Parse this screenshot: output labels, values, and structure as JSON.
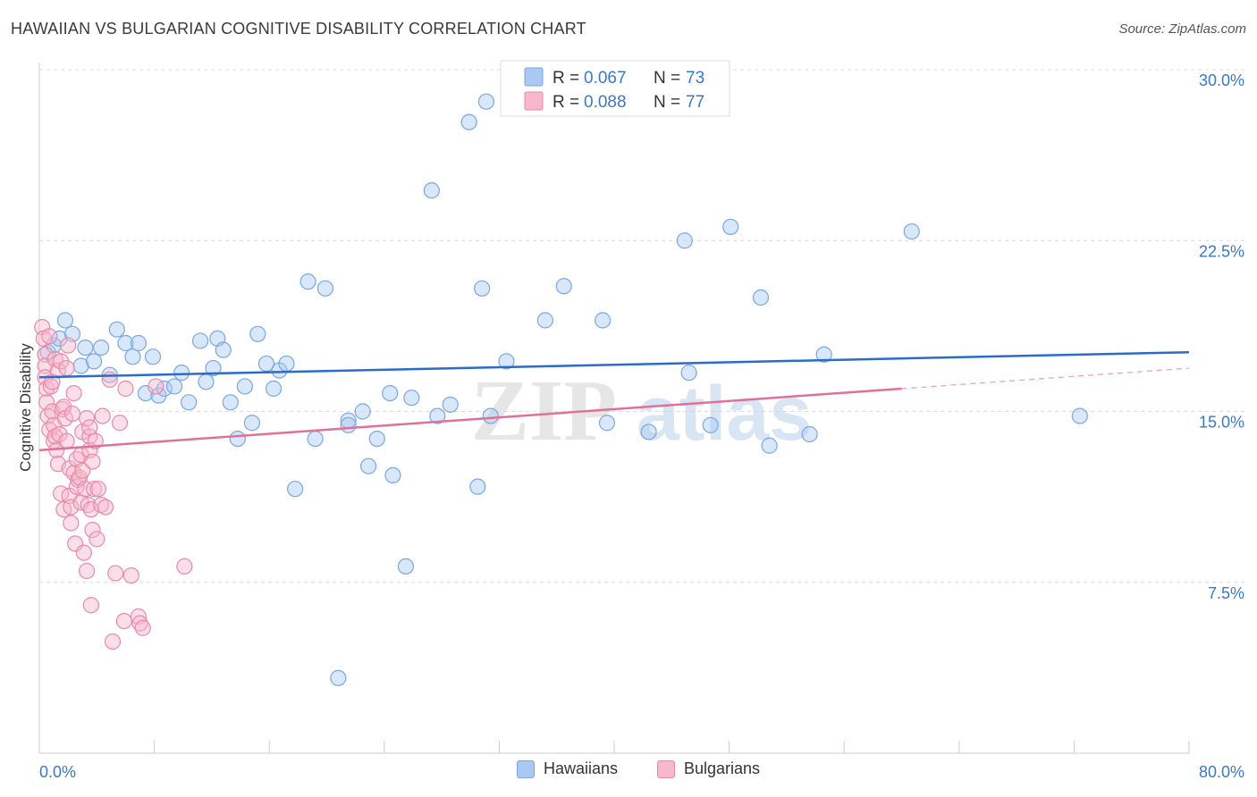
{
  "header": {
    "title": "HAWAIIAN VS BULGARIAN COGNITIVE DISABILITY CORRELATION CHART",
    "source": "Source: ZipAtlas.com"
  },
  "watermark": "ZIPatlas",
  "colors": {
    "hawaiians_fill": "#a9c9f2",
    "hawaiians_stroke": "#7aa7e0",
    "hawaiians_line": "#2a6cc9",
    "bulgarians_fill": "#f7b8cc",
    "bulgarians_stroke": "#e88aa8",
    "bulgarians_line": "#e0709a",
    "axis_label": "#3a78c8"
  },
  "legend": {
    "rows": [
      {
        "r_label": "R = ",
        "r_value": "0.067",
        "n_label": "N = ",
        "n_value": "73"
      },
      {
        "r_label": "R = ",
        "r_value": "0.088",
        "n_label": "N = ",
        "n_value": "77"
      }
    ]
  },
  "bottom_legend": [
    "Hawaiians",
    "Bulgarians"
  ],
  "chart_data": {
    "type": "scatter",
    "xlabel": "",
    "ylabel": "Cognitive Disability",
    "xlim": [
      0,
      80
    ],
    "ylim": [
      0,
      31
    ],
    "x_tick_labels": [
      "0.0%",
      "80.0%"
    ],
    "y_ticks": [
      7.5,
      15.0,
      22.5,
      30.0
    ],
    "y_tick_labels": [
      "7.5%",
      "15.0%",
      "22.5%",
      "30.0%"
    ],
    "grid": true,
    "legend_position": "top-center",
    "series": [
      {
        "name": "Hawaiians",
        "r": 0.067,
        "n": 73,
        "trend": {
          "x0": 0,
          "y0": 16.5,
          "x1": 80,
          "y1": 17.6
        },
        "points": [
          [
            0.6,
            17.6
          ],
          [
            1.0,
            17.9
          ],
          [
            1.4,
            18.2
          ],
          [
            1.8,
            19.0
          ],
          [
            2.3,
            18.4
          ],
          [
            2.9,
            17.0
          ],
          [
            3.2,
            17.8
          ],
          [
            3.8,
            17.2
          ],
          [
            4.3,
            17.8
          ],
          [
            4.9,
            16.6
          ],
          [
            5.4,
            18.6
          ],
          [
            6.0,
            18.0
          ],
          [
            6.5,
            17.4
          ],
          [
            6.9,
            18.0
          ],
          [
            7.4,
            15.8
          ],
          [
            7.9,
            17.4
          ],
          [
            8.3,
            15.7
          ],
          [
            8.7,
            16.0
          ],
          [
            9.4,
            16.1
          ],
          [
            9.9,
            16.7
          ],
          [
            10.4,
            15.4
          ],
          [
            11.2,
            18.1
          ],
          [
            11.6,
            16.3
          ],
          [
            12.1,
            16.9
          ],
          [
            12.4,
            18.2
          ],
          [
            12.8,
            17.7
          ],
          [
            13.3,
            15.4
          ],
          [
            13.8,
            13.8
          ],
          [
            14.3,
            16.1
          ],
          [
            14.8,
            14.5
          ],
          [
            15.2,
            18.4
          ],
          [
            15.8,
            17.1
          ],
          [
            16.3,
            16.0
          ],
          [
            16.7,
            16.8
          ],
          [
            17.2,
            17.1
          ],
          [
            17.8,
            11.6
          ],
          [
            18.7,
            20.7
          ],
          [
            19.2,
            13.8
          ],
          [
            19.9,
            20.4
          ],
          [
            20.8,
            3.3
          ],
          [
            21.5,
            14.6
          ],
          [
            21.5,
            14.4
          ],
          [
            22.5,
            15.0
          ],
          [
            22.9,
            12.6
          ],
          [
            23.5,
            13.8
          ],
          [
            24.4,
            15.8
          ],
          [
            24.6,
            12.2
          ],
          [
            25.5,
            8.2
          ],
          [
            25.9,
            15.6
          ],
          [
            27.3,
            24.7
          ],
          [
            27.7,
            14.8
          ],
          [
            28.6,
            15.3
          ],
          [
            29.9,
            27.7
          ],
          [
            30.5,
            11.7
          ],
          [
            30.8,
            20.4
          ],
          [
            31.1,
            28.6
          ],
          [
            31.4,
            14.8
          ],
          [
            32.5,
            17.2
          ],
          [
            35.2,
            19.0
          ],
          [
            36.5,
            20.5
          ],
          [
            39.2,
            19.0
          ],
          [
            39.5,
            14.5
          ],
          [
            42.4,
            14.1
          ],
          [
            44.9,
            22.5
          ],
          [
            45.2,
            16.7
          ],
          [
            46.7,
            14.4
          ],
          [
            48.1,
            23.1
          ],
          [
            50.2,
            20.0
          ],
          [
            50.8,
            13.5
          ],
          [
            53.6,
            14.0
          ],
          [
            54.6,
            17.5
          ],
          [
            60.7,
            22.9
          ],
          [
            72.4,
            14.8
          ]
        ]
      },
      {
        "name": "Bulgarians",
        "r": 0.088,
        "n": 77,
        "trend": {
          "x0": 0,
          "y0": 13.3,
          "x1": 60,
          "y1": 16.0
        },
        "trend_dashed": {
          "x0": 60,
          "y0": 16.0,
          "x1": 80,
          "y1": 16.9
        },
        "points": [
          [
            0.2,
            18.7
          ],
          [
            0.3,
            18.2
          ],
          [
            0.4,
            17.5
          ],
          [
            0.4,
            17.0
          ],
          [
            0.4,
            16.5
          ],
          [
            0.5,
            16.0
          ],
          [
            0.5,
            15.4
          ],
          [
            0.6,
            14.8
          ],
          [
            0.7,
            14.2
          ],
          [
            0.7,
            18.3
          ],
          [
            0.8,
            16.1
          ],
          [
            0.9,
            16.3
          ],
          [
            0.9,
            15.0
          ],
          [
            1.0,
            13.7
          ],
          [
            1.0,
            14.4
          ],
          [
            1.1,
            13.9
          ],
          [
            1.1,
            17.3
          ],
          [
            1.2,
            13.3
          ],
          [
            1.3,
            12.7
          ],
          [
            1.3,
            16.8
          ],
          [
            1.4,
            14.0
          ],
          [
            1.5,
            11.4
          ],
          [
            1.5,
            17.2
          ],
          [
            1.6,
            15.1
          ],
          [
            1.7,
            10.7
          ],
          [
            1.7,
            15.2
          ],
          [
            1.8,
            14.7
          ],
          [
            1.9,
            16.9
          ],
          [
            1.9,
            13.7
          ],
          [
            2.0,
            17.9
          ],
          [
            2.1,
            11.3
          ],
          [
            2.1,
            12.5
          ],
          [
            2.2,
            10.1
          ],
          [
            2.2,
            10.8
          ],
          [
            2.3,
            14.9
          ],
          [
            2.4,
            12.3
          ],
          [
            2.4,
            15.8
          ],
          [
            2.5,
            9.2
          ],
          [
            2.6,
            12.9
          ],
          [
            2.6,
            11.7
          ],
          [
            2.7,
            12.0
          ],
          [
            2.8,
            12.1
          ],
          [
            2.9,
            11.0
          ],
          [
            2.9,
            13.1
          ],
          [
            3.0,
            14.1
          ],
          [
            3.0,
            12.4
          ],
          [
            3.1,
            8.8
          ],
          [
            3.2,
            11.6
          ],
          [
            3.3,
            14.7
          ],
          [
            3.3,
            8.0
          ],
          [
            3.4,
            10.9
          ],
          [
            3.5,
            13.9
          ],
          [
            3.5,
            14.3
          ],
          [
            3.5,
            13.3
          ],
          [
            3.6,
            10.7
          ],
          [
            3.6,
            6.5
          ],
          [
            3.7,
            9.8
          ],
          [
            3.7,
            12.8
          ],
          [
            3.8,
            11.6
          ],
          [
            3.9,
            13.7
          ],
          [
            4.0,
            9.4
          ],
          [
            4.1,
            11.6
          ],
          [
            4.3,
            10.9
          ],
          [
            4.4,
            14.8
          ],
          [
            4.6,
            10.8
          ],
          [
            4.9,
            16.4
          ],
          [
            5.1,
            4.9
          ],
          [
            5.3,
            7.9
          ],
          [
            5.6,
            14.5
          ],
          [
            5.9,
            5.8
          ],
          [
            6.0,
            16.0
          ],
          [
            6.4,
            7.8
          ],
          [
            6.9,
            6.0
          ],
          [
            7.0,
            5.7
          ],
          [
            7.2,
            5.5
          ],
          [
            8.1,
            16.1
          ],
          [
            10.1,
            8.2
          ]
        ]
      }
    ]
  }
}
